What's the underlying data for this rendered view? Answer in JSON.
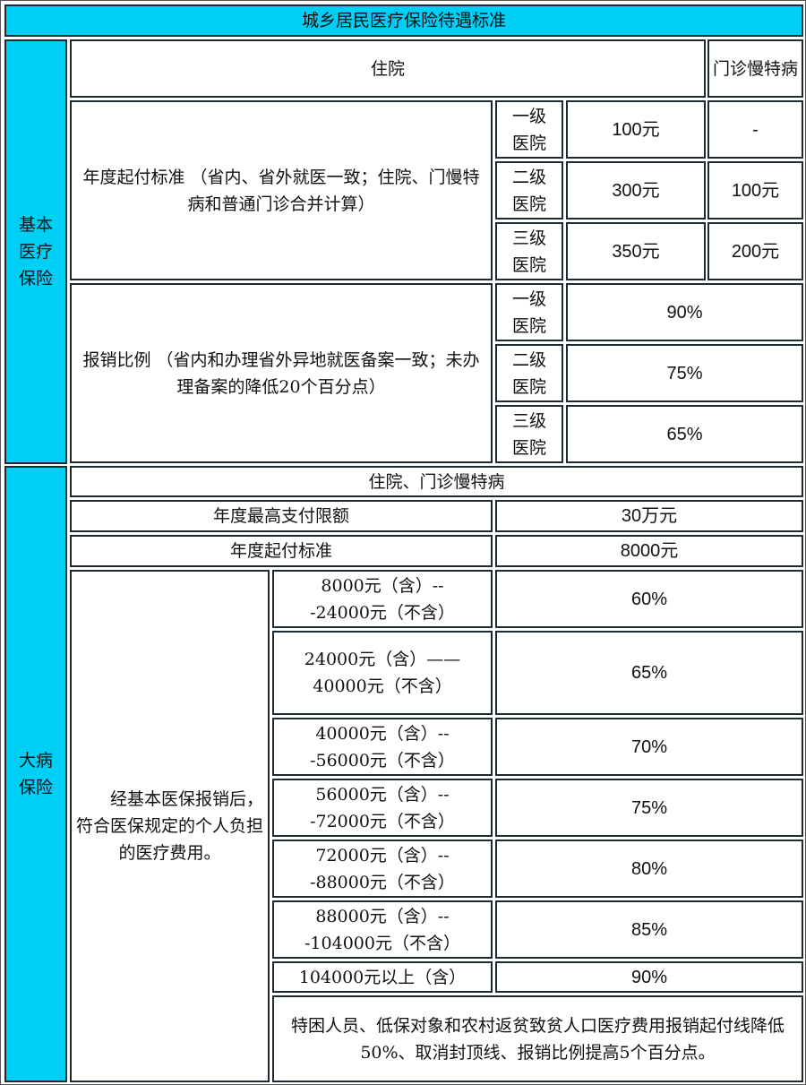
{
  "title": "城乡居民医疗保险待遇标准",
  "colors": {
    "header_bg": "#00cff5",
    "border": "#1e2a30"
  },
  "basic": {
    "label": "基本医疗保险",
    "inpatient": "住院",
    "outpatient": "门诊慢特病",
    "deductible_label": "年度起付标准 （省内、省外就医一致；住院、门慢特病和普通门诊合并计算）",
    "deductible_rows": [
      {
        "level": "一级医院",
        "inpatient": "100元",
        "outpatient": "-"
      },
      {
        "level": "二级医院",
        "inpatient": "300元",
        "outpatient": "100元"
      },
      {
        "level": "三级医院",
        "inpatient": "350元",
        "outpatient": "200元"
      }
    ],
    "reimb_label": "报销比例 （省内和办理省外异地就医备案一致；未办理备案的降低20个百分点）",
    "reimb_rows": [
      {
        "level": "一级医院",
        "rate": "90%"
      },
      {
        "level": "二级医院",
        "rate": "75%"
      },
      {
        "level": "三级医院",
        "rate": "65%"
      }
    ]
  },
  "serious": {
    "label": "大病保险",
    "scope": "住院、门诊慢特病",
    "max_label": "年度最高支付限额",
    "max_value": "30万元",
    "deductible_label": "年度起付标准",
    "deductible_value": "8000元",
    "cost_label": "经基本医保报销后，符合医保规定的个人负担的医疗费用。",
    "bands": [
      {
        "range": "8000元（含）---24000元（不含）",
        "rate": "60%"
      },
      {
        "range": "24000元（含）——40000元（不含）",
        "rate": "65%"
      },
      {
        "range": "40000元（含）---56000元（不含）",
        "rate": "70%"
      },
      {
        "range": "56000元（含）---72000元（不含）",
        "rate": "75%"
      },
      {
        "range": "72000元（含）---88000元（不含）",
        "rate": "80%"
      },
      {
        "range": "88000元（含）---104000元（不含）",
        "rate": "85%"
      },
      {
        "range": "104000元以上（含）",
        "rate": "90%"
      }
    ],
    "note": "特困人员、低保对象和农村返贫致贫人口医疗费用报销起付线降低50%、取消封顶线、报销比例提高5个百分点。"
  }
}
